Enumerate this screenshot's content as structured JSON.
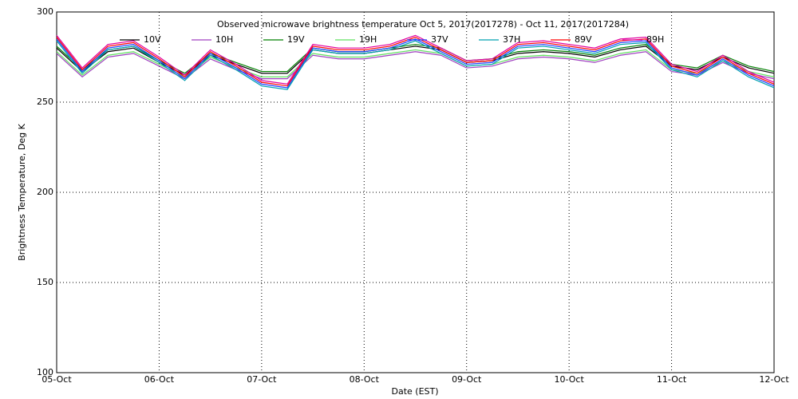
{
  "chart_data": {
    "type": "line",
    "title": "Observed microwave brightness temperature Oct  5, 2017(2017278) - Oct 11, 2017(2017284)",
    "x_label": "Date (EST)",
    "y_label": "Brightness Temperature, Deg K",
    "x": [
      0,
      0.25,
      0.5,
      0.75,
      1,
      1.25,
      1.5,
      1.75,
      2,
      2.25,
      2.5,
      2.75,
      3,
      3.25,
      3.5,
      3.75,
      4,
      4.25,
      4.5,
      4.75,
      5,
      5.25,
      5.5,
      5.75,
      6,
      6.25,
      6.5,
      6.75,
      7
    ],
    "xlim": [
      0,
      7
    ],
    "xticks": [
      {
        "value": 0,
        "label": "05-Oct"
      },
      {
        "value": 1,
        "label": "06-Oct"
      },
      {
        "value": 2,
        "label": "07-Oct"
      },
      {
        "value": 3,
        "label": "08-Oct"
      },
      {
        "value": 4,
        "label": "09-Oct"
      },
      {
        "value": 5,
        "label": "10-Oct"
      },
      {
        "value": 6,
        "label": "11-Oct"
      },
      {
        "value": 7,
        "label": "12-Oct"
      }
    ],
    "ylim": [
      100,
      300
    ],
    "yticks": [
      100,
      150,
      200,
      250,
      300
    ],
    "grid": true,
    "series": [
      {
        "name": "10V",
        "color": "#000000",
        "values": [
          280,
          267,
          278,
          280,
          272,
          265,
          276,
          271,
          266,
          266,
          279,
          277,
          277,
          279,
          281,
          279,
          272,
          273,
          277,
          278,
          277,
          275,
          279,
          281,
          270,
          268,
          275,
          269,
          266
        ]
      },
      {
        "name": "10H",
        "color": "#a040c0",
        "values": [
          277,
          264,
          275,
          277,
          270,
          263,
          274,
          268,
          263,
          263,
          276,
          274,
          274,
          276,
          278,
          276,
          269,
          270,
          274,
          275,
          274,
          272,
          276,
          278,
          267,
          265,
          272,
          266,
          263
        ]
      },
      {
        "name": "19V",
        "color": "#008000",
        "values": [
          281,
          268,
          279,
          281,
          273,
          266,
          277,
          272,
          267,
          267,
          280,
          278,
          278,
          280,
          282,
          280,
          273,
          274,
          278,
          279,
          278,
          276,
          280,
          282,
          271,
          269,
          276,
          270,
          267
        ]
      },
      {
        "name": "19H",
        "color": "#60e060",
        "values": [
          278,
          265,
          276,
          278,
          271,
          264,
          275,
          269,
          264,
          264,
          277,
          275,
          275,
          277,
          279,
          277,
          270,
          271,
          275,
          276,
          275,
          273,
          277,
          279,
          268,
          266,
          273,
          267,
          264
        ]
      },
      {
        "name": "37V",
        "color": "#2040ff",
        "values": [
          285,
          267,
          280,
          282,
          273,
          263,
          277,
          269,
          260,
          258,
          280,
          278,
          278,
          280,
          285,
          278,
          271,
          272,
          281,
          282,
          280,
          278,
          283,
          284,
          269,
          265,
          274,
          265,
          259
        ]
      },
      {
        "name": "37H",
        "color": "#00a0b0",
        "values": [
          284,
          266,
          279,
          281,
          272,
          262,
          276,
          268,
          259,
          257,
          279,
          277,
          277,
          279,
          284,
          277,
          270,
          271,
          280,
          281,
          279,
          277,
          282,
          283,
          268,
          264,
          273,
          264,
          258
        ]
      },
      {
        "name": "89V",
        "color": "#ff0000",
        "values": [
          286,
          268,
          281,
          283,
          274,
          264,
          278,
          270,
          261,
          259,
          281,
          279,
          279,
          281,
          286,
          279,
          272,
          273,
          282,
          283,
          281,
          279,
          284,
          285,
          270,
          266,
          275,
          266,
          260
        ]
      },
      {
        "name": "89H",
        "color": "#e000a0",
        "values": [
          287,
          269,
          282,
          284,
          275,
          265,
          279,
          271,
          262,
          260,
          282,
          280,
          280,
          282,
          287,
          280,
          273,
          274,
          283,
          284,
          282,
          280,
          285,
          286,
          271,
          267,
          276,
          267,
          261
        ]
      }
    ]
  }
}
